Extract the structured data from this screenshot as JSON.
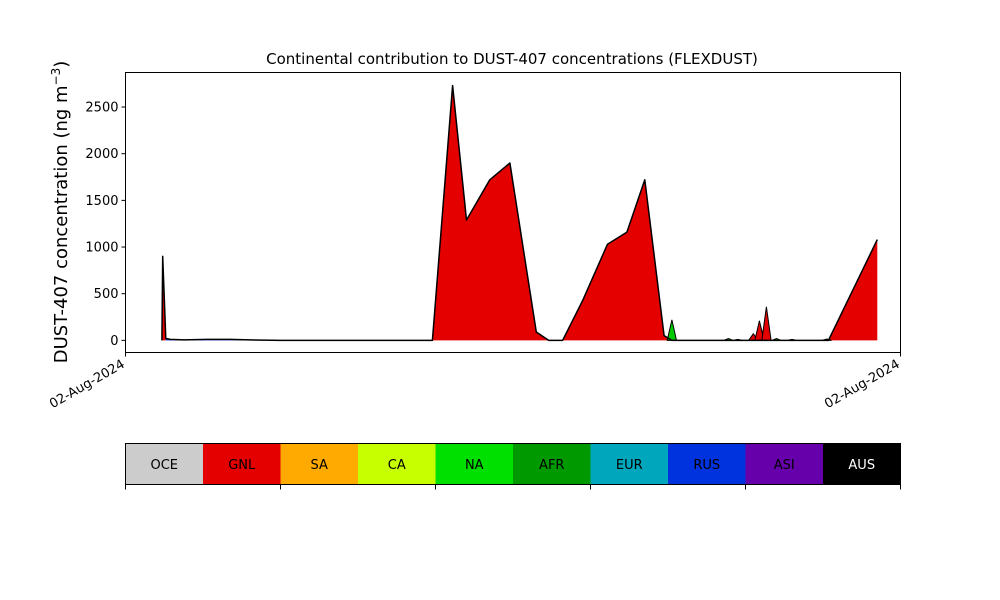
{
  "chart_data": {
    "type": "area",
    "title": "Continental contribution to DUST-407 concentrations (FLEXDUST)",
    "ylabel": "DUST-407 concentration (ng m",
    "ylabel_sup": "−3",
    "ylabel_close": ")",
    "xlabel": "",
    "ylim": [
      -130,
      2870
    ],
    "y_ticks": [
      0,
      500,
      1000,
      1500,
      2000,
      2500
    ],
    "x_ticks": [
      "02-Aug-2024",
      "02-Aug-2024"
    ],
    "xlim": [
      0,
      1
    ],
    "grid": false,
    "total_outline_color": "#000000",
    "x": [
      0.047,
      0.048,
      0.052,
      0.058,
      0.075,
      0.105,
      0.135,
      0.16,
      0.2,
      0.3,
      0.35,
      0.39,
      0.396,
      0.422,
      0.44,
      0.47,
      0.496,
      0.53,
      0.546,
      0.564,
      0.59,
      0.622,
      0.647,
      0.67,
      0.695,
      0.705,
      0.72,
      0.74,
      0.754,
      0.76,
      0.777,
      0.81,
      0.907,
      0.97
    ],
    "series": [
      {
        "name": "GNL",
        "color": "#e50000",
        "values": [
          0,
          900,
          0,
          0,
          0,
          0,
          0,
          0,
          0,
          0,
          0,
          0,
          0,
          2730,
          1290,
          1720,
          1900,
          90,
          0,
          0,
          430,
          1030,
          1160,
          1720,
          50,
          0,
          0,
          0,
          0,
          0,
          0,
          0,
          0,
          1080
        ]
      },
      {
        "name": "NA",
        "color": "#00e000",
        "values": [
          0,
          0,
          0,
          0,
          0,
          0,
          0,
          0,
          0,
          0,
          0,
          0,
          0,
          0,
          0,
          0,
          0,
          0,
          0,
          0,
          0,
          0,
          0,
          0,
          0,
          0,
          0,
          0,
          0,
          0,
          0,
          0,
          0,
          0
        ]
      },
      {
        "name": "RUS",
        "color": "#0033dd",
        "values": [
          0,
          0,
          20,
          10,
          5,
          10,
          10,
          5,
          0,
          0,
          0,
          0,
          0,
          0,
          0,
          0,
          0,
          0,
          0,
          0,
          0,
          0,
          0,
          0,
          0,
          0,
          0,
          0,
          0,
          0,
          0,
          0,
          0,
          0
        ]
      }
    ],
    "extra_events": [
      {
        "x": 0.705,
        "base": 0,
        "peak": 220,
        "color": "#00cc00"
      },
      {
        "x": 0.778,
        "base": 0,
        "peak": 20,
        "color": "#00cc00"
      },
      {
        "x": 0.79,
        "base": 0,
        "peak": 10,
        "color": "#c8ff00"
      },
      {
        "x": 0.81,
        "base": 0,
        "peak": 70,
        "color": "#e50000"
      },
      {
        "x": 0.818,
        "base": 0,
        "peak": 210,
        "color": "#e50000"
      },
      {
        "x": 0.827,
        "base": 0,
        "peak": 360,
        "color": "#e50000"
      },
      {
        "x": 0.84,
        "base": 0,
        "peak": 20,
        "color": "#00cc00"
      },
      {
        "x": 0.86,
        "base": 0,
        "peak": 10,
        "color": "#00cc00"
      },
      {
        "x": 0.905,
        "base": 0,
        "peak": 15,
        "color": "#00cc00"
      }
    ]
  },
  "legend": {
    "items": [
      {
        "label": "OCE",
        "color": "#cccccc",
        "text_color": "#000000"
      },
      {
        "label": "GNL",
        "color": "#e50000",
        "text_color": "#000000"
      },
      {
        "label": "SA",
        "color": "#ffaa00",
        "text_color": "#000000"
      },
      {
        "label": "CA",
        "color": "#c8ff00",
        "text_color": "#000000"
      },
      {
        "label": "NA",
        "color": "#00e000",
        "text_color": "#000000"
      },
      {
        "label": "AFR",
        "color": "#009900",
        "text_color": "#000000"
      },
      {
        "label": "EUR",
        "color": "#00a6bb",
        "text_color": "#000000"
      },
      {
        "label": "RUS",
        "color": "#0033dd",
        "text_color": "#000000"
      },
      {
        "label": "ASI",
        "color": "#6600aa",
        "text_color": "#000000"
      },
      {
        "label": "AUS",
        "color": "#000000",
        "text_color": "#ffffff"
      }
    ]
  }
}
